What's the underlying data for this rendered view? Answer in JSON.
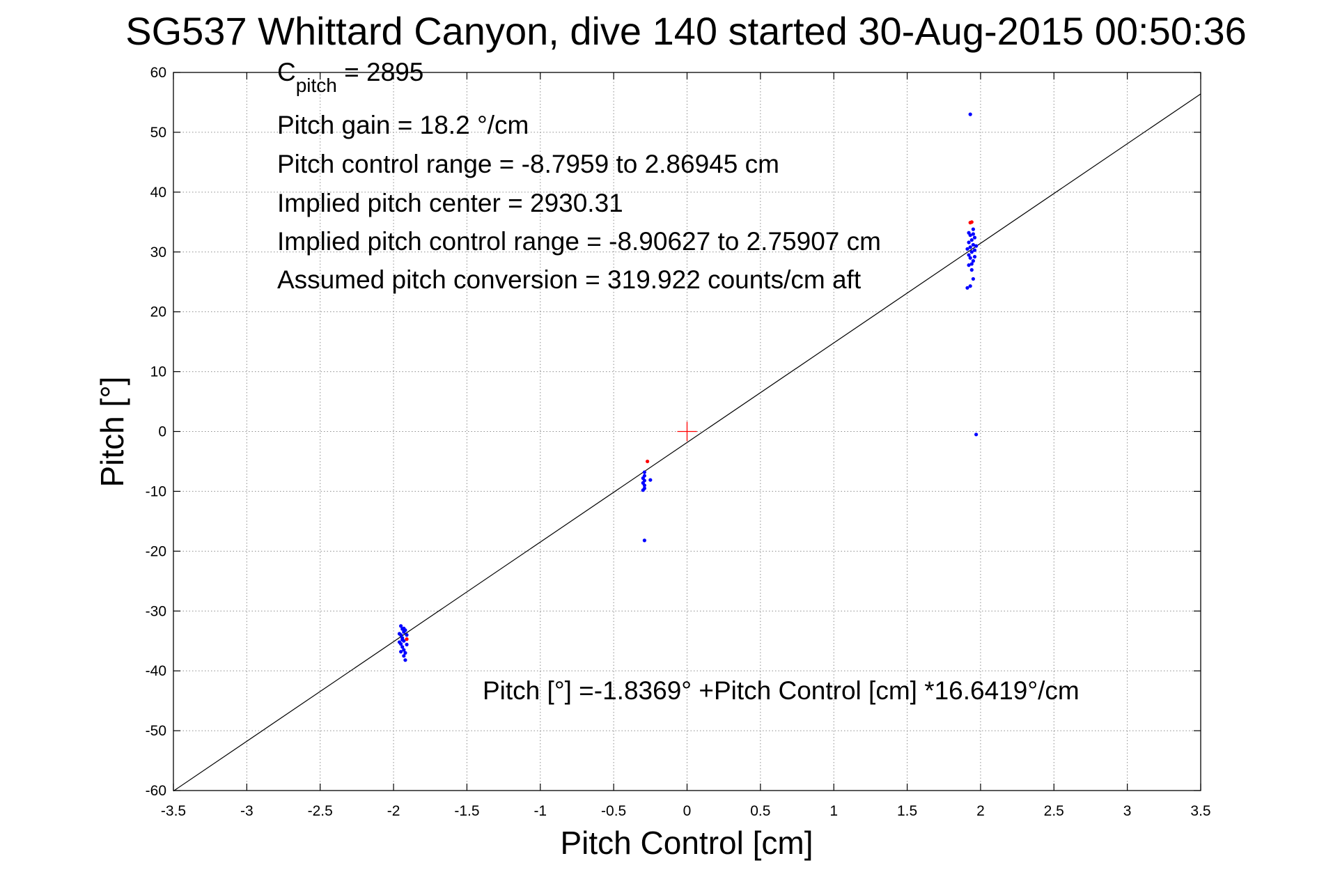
{
  "chart_data": {
    "type": "scatter",
    "title": "SG537 Whittard Canyon, dive 140 started 30-Aug-2015 00:50:36",
    "xlabel": "Pitch Control [cm]",
    "ylabel": "Pitch [°]",
    "xlim": [
      -3.5,
      3.5
    ],
    "ylim": [
      -60,
      60
    ],
    "xticks": [
      -3.5,
      -3,
      -2.5,
      -2,
      -1.5,
      -1,
      -0.5,
      0,
      0.5,
      1,
      1.5,
      2,
      2.5,
      3,
      3.5
    ],
    "xtick_labels": [
      "-3.5",
      "-3",
      "-2.5",
      "-2",
      "-1.5",
      "-1",
      "-0.5",
      "0",
      "0.5",
      "1",
      "1.5",
      "2",
      "2.5",
      "3",
      "3.5"
    ],
    "yticks": [
      -60,
      -50,
      -40,
      -30,
      -20,
      -10,
      0,
      10,
      20,
      30,
      40,
      50,
      60
    ],
    "ytick_labels": [
      "-60",
      "-50",
      "-40",
      "-30",
      "-20",
      "-10",
      "0",
      "10",
      "20",
      "30",
      "40",
      "50",
      "60"
    ],
    "grid": true,
    "annotations": {
      "cpitch_base": "C",
      "cpitch_sub": "pitch",
      "cpitch_value": " = 2895",
      "lines": [
        "Pitch gain = 18.2 °/cm",
        "Pitch control range = -8.7959 to 2.86945 cm",
        "Implied pitch center = 2930.31",
        "Implied pitch control range = -8.90627 to 2.75907 cm",
        "Assumed pitch conversion = 319.922 counts/cm aft"
      ],
      "fit_equation": "Pitch [°] =-1.8369° +Pitch Control [cm] *16.6419°/cm"
    },
    "fit_line": {
      "intercept": -1.8369,
      "slope": 16.6419,
      "color": "#000000"
    },
    "center_marker": {
      "x": 0,
      "y": 0,
      "color": "#ff0000"
    },
    "series": [
      {
        "color": "#0000ff",
        "points": [
          [
            -1.95,
            -32.5
          ],
          [
            -1.94,
            -33.0
          ],
          [
            -1.93,
            -33.5
          ],
          [
            -1.95,
            -34.0
          ],
          [
            -1.94,
            -34.5
          ],
          [
            -1.93,
            -35.0
          ],
          [
            -1.95,
            -35.5
          ],
          [
            -1.94,
            -36.0
          ],
          [
            -1.93,
            -36.5
          ],
          [
            -1.92,
            -37.0
          ],
          [
            -1.93,
            -37.5
          ],
          [
            -1.92,
            -38.2
          ],
          [
            -1.96,
            -33.8
          ],
          [
            -1.96,
            -35.2
          ],
          [
            -1.91,
            -34.0
          ],
          [
            -1.91,
            -35.6
          ],
          [
            -1.92,
            -33.2
          ],
          [
            -1.95,
            -36.8
          ],
          [
            -1.94,
            -34.8
          ],
          [
            -1.93,
            -32.9
          ],
          [
            -0.29,
            -6.8
          ],
          [
            -0.29,
            -7.4
          ],
          [
            -0.3,
            -7.8
          ],
          [
            -0.29,
            -8.2
          ],
          [
            -0.3,
            -8.6
          ],
          [
            -0.29,
            -9.0
          ],
          [
            -0.29,
            -9.5
          ],
          [
            -0.3,
            -9.8
          ],
          [
            -0.25,
            -8.1
          ],
          [
            -0.29,
            -18.2
          ],
          [
            1.91,
            24.0
          ],
          [
            1.93,
            24.3
          ],
          [
            1.95,
            25.5
          ],
          [
            1.94,
            27.0
          ],
          [
            1.92,
            27.8
          ],
          [
            1.95,
            28.5
          ],
          [
            1.93,
            29.0
          ],
          [
            1.92,
            29.5
          ],
          [
            1.94,
            30.0
          ],
          [
            1.96,
            30.3
          ],
          [
            1.93,
            30.8
          ],
          [
            1.95,
            31.2
          ],
          [
            1.92,
            31.6
          ],
          [
            1.94,
            32.0
          ],
          [
            1.96,
            32.4
          ],
          [
            1.93,
            32.8
          ],
          [
            1.95,
            33.0
          ],
          [
            1.97,
            31.0
          ],
          [
            1.91,
            30.5
          ],
          [
            1.92,
            33.2
          ],
          [
            1.94,
            28.0
          ],
          [
            1.96,
            29.2
          ],
          [
            1.95,
            33.8
          ],
          [
            1.93,
            53.0
          ],
          [
            1.97,
            -0.5
          ]
        ]
      },
      {
        "color": "#ff0000",
        "points": [
          [
            -1.91,
            -34.7
          ],
          [
            -0.27,
            -5.0
          ],
          [
            1.94,
            35.0
          ],
          [
            1.93,
            34.9
          ]
        ]
      }
    ]
  }
}
